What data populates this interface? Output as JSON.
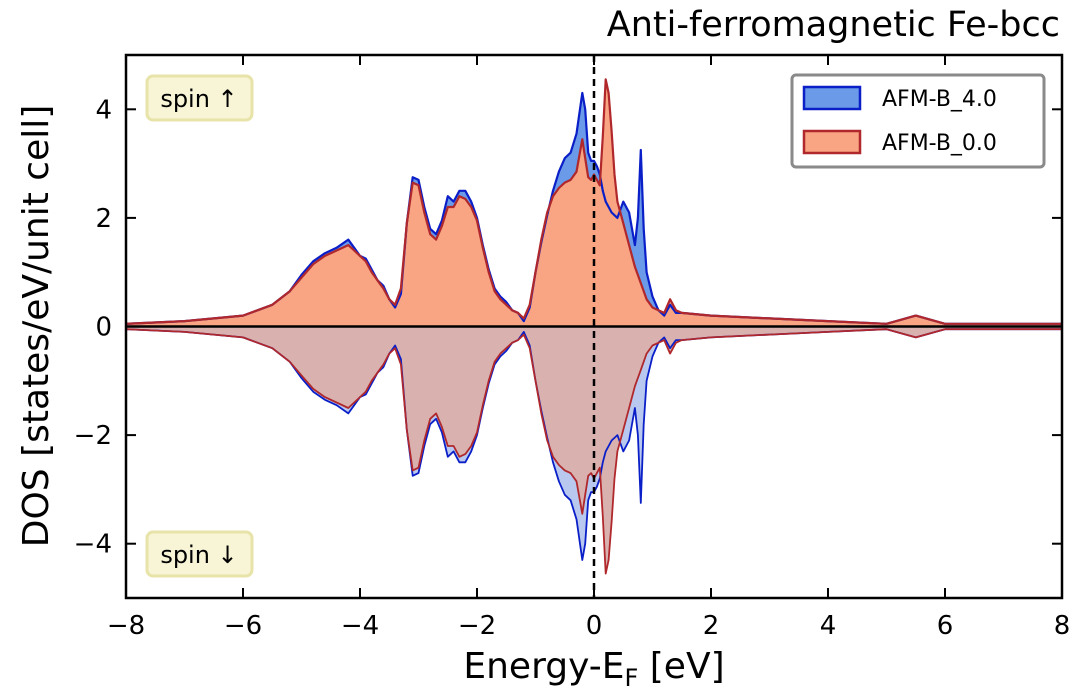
{
  "chart_data": {
    "type": "area",
    "title": "Anti-ferromagnetic Fe-bcc",
    "xlabel_main": "Energy-E",
    "xlabel_sub": "F",
    "xlabel_unit": " [eV]",
    "ylabel": "DOS [states/eV/unit cell]",
    "xlim": [
      -8,
      8
    ],
    "ylim": [
      -5,
      5
    ],
    "xticks": [
      -8,
      -6,
      -4,
      -2,
      0,
      2,
      4,
      6,
      8
    ],
    "xtick_labels": [
      "−8",
      "−6",
      "−4",
      "−2",
      "0",
      "2",
      "4",
      "6",
      "8"
    ],
    "yticks": [
      -4,
      -2,
      0,
      2,
      4
    ],
    "ytick_labels": [
      "−4",
      "−2",
      "0",
      "2",
      "4"
    ],
    "fermi_level": 0,
    "legend_position": "top-right",
    "annotations": {
      "spin_up": "spin ↑",
      "spin_down": "spin ↓"
    },
    "colors": {
      "b4_fill": "#6a9ae8",
      "b4_line": "#0a1fc8",
      "b0_fill": "#f9a482",
      "b0_line": "#b0282c",
      "down_b0_fill": "#d9b2b0",
      "down_b4_fill": "#b8c8ee",
      "badge_bg": "#f7f5d6",
      "badge_border": "#e8e3a8"
    },
    "series": [
      {
        "name": "AFM-B_4.0",
        "x": [
          -8,
          -7,
          -6,
          -5.5,
          -5.2,
          -5,
          -4.8,
          -4.6,
          -4.4,
          -4.2,
          -4.1,
          -4.0,
          -3.9,
          -3.8,
          -3.7,
          -3.6,
          -3.5,
          -3.4,
          -3.3,
          -3.2,
          -3.1,
          -3.0,
          -2.9,
          -2.8,
          -2.7,
          -2.6,
          -2.5,
          -2.4,
          -2.3,
          -2.2,
          -2.1,
          -2.0,
          -1.9,
          -1.8,
          -1.7,
          -1.6,
          -1.5,
          -1.4,
          -1.3,
          -1.2,
          -1.1,
          -1.0,
          -0.9,
          -0.8,
          -0.7,
          -0.6,
          -0.5,
          -0.4,
          -0.3,
          -0.2,
          -0.15,
          -0.1,
          -0.05,
          0,
          0.05,
          0.1,
          0.15,
          0.2,
          0.3,
          0.4,
          0.5,
          0.6,
          0.7,
          0.75,
          0.8,
          0.85,
          0.9,
          1.0,
          1.1,
          1.2,
          1.3,
          1.4,
          1.5,
          2,
          3,
          4,
          5,
          5.5,
          6,
          7,
          8
        ],
        "spin_up": [
          0.05,
          0.1,
          0.2,
          0.4,
          0.65,
          0.95,
          1.2,
          1.35,
          1.45,
          1.6,
          1.45,
          1.3,
          1.25,
          1.05,
          0.85,
          0.75,
          0.5,
          0.35,
          0.6,
          1.9,
          2.75,
          2.7,
          2.2,
          1.8,
          1.7,
          1.95,
          2.4,
          2.3,
          2.5,
          2.5,
          2.3,
          2.0,
          1.5,
          1.05,
          0.7,
          0.55,
          0.45,
          0.3,
          0.25,
          0.1,
          0.35,
          1.0,
          1.55,
          2.05,
          2.5,
          2.85,
          3.1,
          3.2,
          3.55,
          4.3,
          4.0,
          3.2,
          3.05,
          3.05,
          2.95,
          2.8,
          2.5,
          2.3,
          2.1,
          2.0,
          2.3,
          2.1,
          1.5,
          2.0,
          3.25,
          1.8,
          1.0,
          0.55,
          0.3,
          0.2,
          0.4,
          0.25,
          0.25,
          0.2,
          0.15,
          0.1,
          0.05,
          0.2,
          0.05,
          0.05,
          0.05
        ],
        "spin_down": [
          -0.05,
          -0.1,
          -0.2,
          -0.4,
          -0.65,
          -0.95,
          -1.2,
          -1.35,
          -1.45,
          -1.6,
          -1.45,
          -1.3,
          -1.25,
          -1.05,
          -0.85,
          -0.75,
          -0.5,
          -0.35,
          -0.6,
          -1.9,
          -2.75,
          -2.7,
          -2.2,
          -1.8,
          -1.7,
          -1.95,
          -2.4,
          -2.3,
          -2.5,
          -2.5,
          -2.3,
          -2.0,
          -1.5,
          -1.05,
          -0.7,
          -0.55,
          -0.45,
          -0.3,
          -0.25,
          -0.1,
          -0.35,
          -1.0,
          -1.55,
          -2.05,
          -2.5,
          -2.85,
          -3.1,
          -3.2,
          -3.55,
          -4.3,
          -4.0,
          -3.2,
          -3.05,
          -3.05,
          -2.95,
          -2.8,
          -2.5,
          -2.3,
          -2.1,
          -2.0,
          -2.3,
          -2.1,
          -1.5,
          -2.0,
          -3.25,
          -1.8,
          -1.0,
          -0.55,
          -0.3,
          -0.2,
          -0.4,
          -0.25,
          -0.25,
          -0.2,
          -0.15,
          -0.1,
          -0.05,
          -0.2,
          -0.05,
          -0.05,
          -0.05
        ]
      },
      {
        "name": "AFM-B_0.0",
        "x": [
          -8,
          -7,
          -6,
          -5.5,
          -5.2,
          -5,
          -4.8,
          -4.6,
          -4.4,
          -4.2,
          -4.1,
          -4.0,
          -3.9,
          -3.8,
          -3.7,
          -3.6,
          -3.5,
          -3.4,
          -3.3,
          -3.2,
          -3.1,
          -3.0,
          -2.9,
          -2.8,
          -2.7,
          -2.6,
          -2.5,
          -2.4,
          -2.3,
          -2.2,
          -2.1,
          -2.0,
          -1.9,
          -1.8,
          -1.7,
          -1.6,
          -1.5,
          -1.4,
          -1.3,
          -1.2,
          -1.1,
          -1.0,
          -0.9,
          -0.8,
          -0.7,
          -0.6,
          -0.5,
          -0.4,
          -0.3,
          -0.2,
          -0.15,
          -0.1,
          -0.05,
          0,
          0.05,
          0.1,
          0.15,
          0.2,
          0.25,
          0.3,
          0.35,
          0.4,
          0.5,
          0.6,
          0.7,
          0.8,
          0.9,
          1.0,
          1.1,
          1.2,
          1.3,
          1.4,
          1.5,
          2,
          3,
          4,
          5,
          5.5,
          6,
          7,
          8
        ],
        "spin_up": [
          0.05,
          0.1,
          0.2,
          0.4,
          0.65,
          0.9,
          1.15,
          1.3,
          1.4,
          1.5,
          1.4,
          1.3,
          1.2,
          1.0,
          0.85,
          0.7,
          0.5,
          0.4,
          0.7,
          1.9,
          2.65,
          2.6,
          2.1,
          1.7,
          1.6,
          1.85,
          2.2,
          2.2,
          2.4,
          2.35,
          2.2,
          1.95,
          1.45,
          1.0,
          0.65,
          0.5,
          0.4,
          0.3,
          0.25,
          0.15,
          0.4,
          1.0,
          1.6,
          2.1,
          2.4,
          2.55,
          2.65,
          2.7,
          2.85,
          3.45,
          3.1,
          2.75,
          2.7,
          2.8,
          2.7,
          2.6,
          3.5,
          4.55,
          4.3,
          3.6,
          2.8,
          2.3,
          1.9,
          1.5,
          1.1,
          0.8,
          0.5,
          0.35,
          0.3,
          0.25,
          0.5,
          0.3,
          0.25,
          0.2,
          0.15,
          0.1,
          0.05,
          0.2,
          0.05,
          0.05,
          0.05
        ],
        "spin_down": [
          -0.05,
          -0.1,
          -0.2,
          -0.4,
          -0.65,
          -0.9,
          -1.15,
          -1.3,
          -1.4,
          -1.5,
          -1.4,
          -1.3,
          -1.2,
          -1.0,
          -0.85,
          -0.7,
          -0.5,
          -0.4,
          -0.7,
          -1.9,
          -2.65,
          -2.6,
          -2.1,
          -1.7,
          -1.6,
          -1.85,
          -2.2,
          -2.2,
          -2.4,
          -2.35,
          -2.2,
          -1.95,
          -1.45,
          -1.0,
          -0.65,
          -0.5,
          -0.4,
          -0.3,
          -0.25,
          -0.15,
          -0.4,
          -1.0,
          -1.6,
          -2.1,
          -2.4,
          -2.55,
          -2.65,
          -2.7,
          -2.85,
          -3.45,
          -3.1,
          -2.75,
          -2.7,
          -2.8,
          -2.7,
          -2.6,
          -3.5,
          -4.55,
          -4.3,
          -3.6,
          -2.8,
          -2.3,
          -1.9,
          -1.5,
          -1.1,
          -0.8,
          -0.5,
          -0.35,
          -0.3,
          -0.25,
          -0.5,
          -0.3,
          -0.25,
          -0.2,
          -0.15,
          -0.1,
          -0.05,
          -0.2,
          -0.05,
          -0.05,
          -0.05
        ]
      }
    ]
  }
}
